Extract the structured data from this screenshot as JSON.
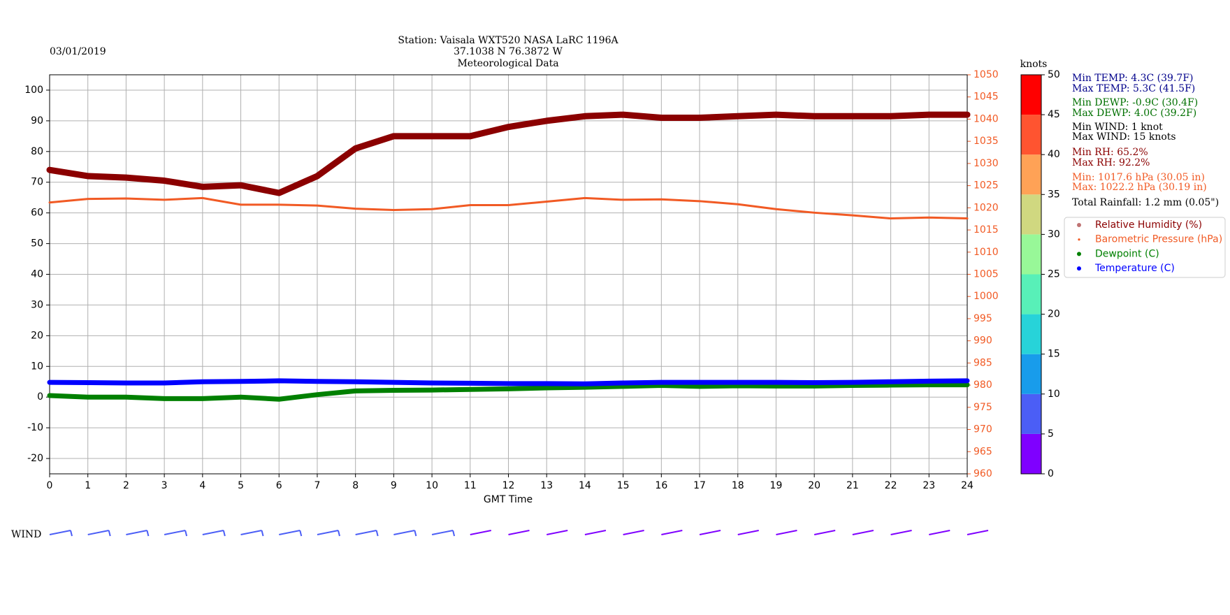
{
  "chart_data": {
    "type": "line",
    "date": "03/01/2019",
    "title": [
      "Station:  Vaisala WXT520  NASA LaRC 1196A",
      "37.1038 N 76.3872 W",
      "Meteorological Data"
    ],
    "title_color": "#007000",
    "xlabel": "GMT Time",
    "x": [
      0,
      1,
      2,
      3,
      4,
      5,
      6,
      7,
      8,
      9,
      10,
      11,
      12,
      13,
      14,
      15,
      16,
      17,
      18,
      19,
      20,
      21,
      22,
      23,
      24
    ],
    "xlim": [
      0,
      24
    ],
    "xticks": [
      0,
      1,
      2,
      3,
      4,
      5,
      6,
      7,
      8,
      9,
      10,
      11,
      12,
      13,
      14,
      15,
      16,
      17,
      18,
      19,
      20,
      21,
      22,
      23,
      24
    ],
    "ylim": [
      -25,
      105
    ],
    "yticks": [
      -20,
      -10,
      0,
      10,
      20,
      30,
      40,
      50,
      60,
      70,
      80,
      90,
      100
    ],
    "y2lim": [
      960,
      1050
    ],
    "y2ticks": [
      960,
      965,
      970,
      975,
      980,
      985,
      990,
      995,
      1000,
      1005,
      1010,
      1015,
      1020,
      1025,
      1030,
      1035,
      1040,
      1045,
      1050
    ],
    "y2color": "#f15a24",
    "grid": true,
    "series": [
      {
        "name": "Relative Humidity (%)",
        "color": "#8b0000",
        "values": [
          74,
          72,
          71.5,
          70.5,
          68.5,
          69,
          66.5,
          72,
          81,
          85,
          85,
          85,
          88,
          90,
          91.5,
          92,
          91,
          91,
          91.5,
          92,
          91.5,
          91.5,
          91.5,
          92,
          92
        ]
      },
      {
        "name": "Barometric Pressure (hPa)",
        "color": "#f15a24",
        "axis": "y2",
        "values": [
          1021.2,
          1022,
          1022.1,
          1021.8,
          1022.2,
          1020.7,
          1020.7,
          1020.5,
          1019.8,
          1019.5,
          1019.7,
          1020.6,
          1020.6,
          1021.4,
          1022.2,
          1021.8,
          1021.9,
          1021.5,
          1020.8,
          1019.7,
          1018.9,
          1018.3,
          1017.6,
          1017.8,
          1017.6
        ]
      },
      {
        "name": "Dewpoint (C)",
        "color": "#008000",
        "values": [
          0.5,
          0,
          0,
          -0.5,
          -0.5,
          0,
          -0.7,
          0.8,
          2,
          2.2,
          2.3,
          2.5,
          2.7,
          3,
          3.2,
          3.5,
          3.8,
          3.5,
          3.7,
          3.6,
          3.6,
          3.8,
          3.9,
          4,
          4
        ]
      },
      {
        "name": "Temperature (C)",
        "color": "#0000ff",
        "values": [
          4.8,
          4.7,
          4.6,
          4.6,
          5,
          5.1,
          5.3,
          5.1,
          5,
          4.8,
          4.6,
          4.5,
          4.4,
          4.4,
          4.3,
          4.6,
          4.8,
          4.8,
          4.8,
          4.8,
          4.7,
          4.8,
          5,
          5.2,
          5.3
        ]
      }
    ],
    "colorbar": {
      "label": "knots",
      "ticks": [
        0,
        5,
        10,
        15,
        20,
        25,
        30,
        35,
        40,
        45,
        50
      ],
      "colors": [
        "#7f00ff",
        "#4b5ef6",
        "#189ceb",
        "#27d3d9",
        "#58f0b8",
        "#98f898",
        "#d0d880",
        "#ffa256",
        "#ff5430",
        "#ff0000"
      ]
    },
    "annotations": [
      {
        "text": "Min TEMP: 4.3C (39.7F)",
        "color": "#00008b"
      },
      {
        "text": "Max TEMP: 5.3C (41.5F)",
        "color": "#00008b"
      },
      {
        "text": "Min DEWP: -0.9C (30.4F)",
        "color": "#007000"
      },
      {
        "text": "Max DEWP: 4.0C (39.2F)",
        "color": "#007000"
      },
      {
        "text": "Min WIND: 1 knot",
        "color": "#000000"
      },
      {
        "text": "Max WIND: 15 knots",
        "color": "#000000"
      },
      {
        "text": "Min RH: 65.2%",
        "color": "#8b0000"
      },
      {
        "text": "Max RH: 92.2%",
        "color": "#8b0000"
      },
      {
        "text": "Min: 1017.6 hPa (30.05 in)",
        "color": "#f15a24"
      },
      {
        "text": "Max: 1022.2 hPa (30.19 in)",
        "color": "#f15a24"
      },
      {
        "text": "Total Rainfall: 1.2 mm (0.05\")",
        "color": "#000000"
      }
    ],
    "wind": {
      "label": "WIND",
      "speed": [
        7,
        8,
        8,
        8,
        8,
        8,
        8,
        7,
        7,
        6,
        5,
        4,
        4,
        3,
        3,
        3,
        3,
        3,
        3,
        3,
        3,
        3,
        3,
        3,
        4
      ]
    }
  }
}
